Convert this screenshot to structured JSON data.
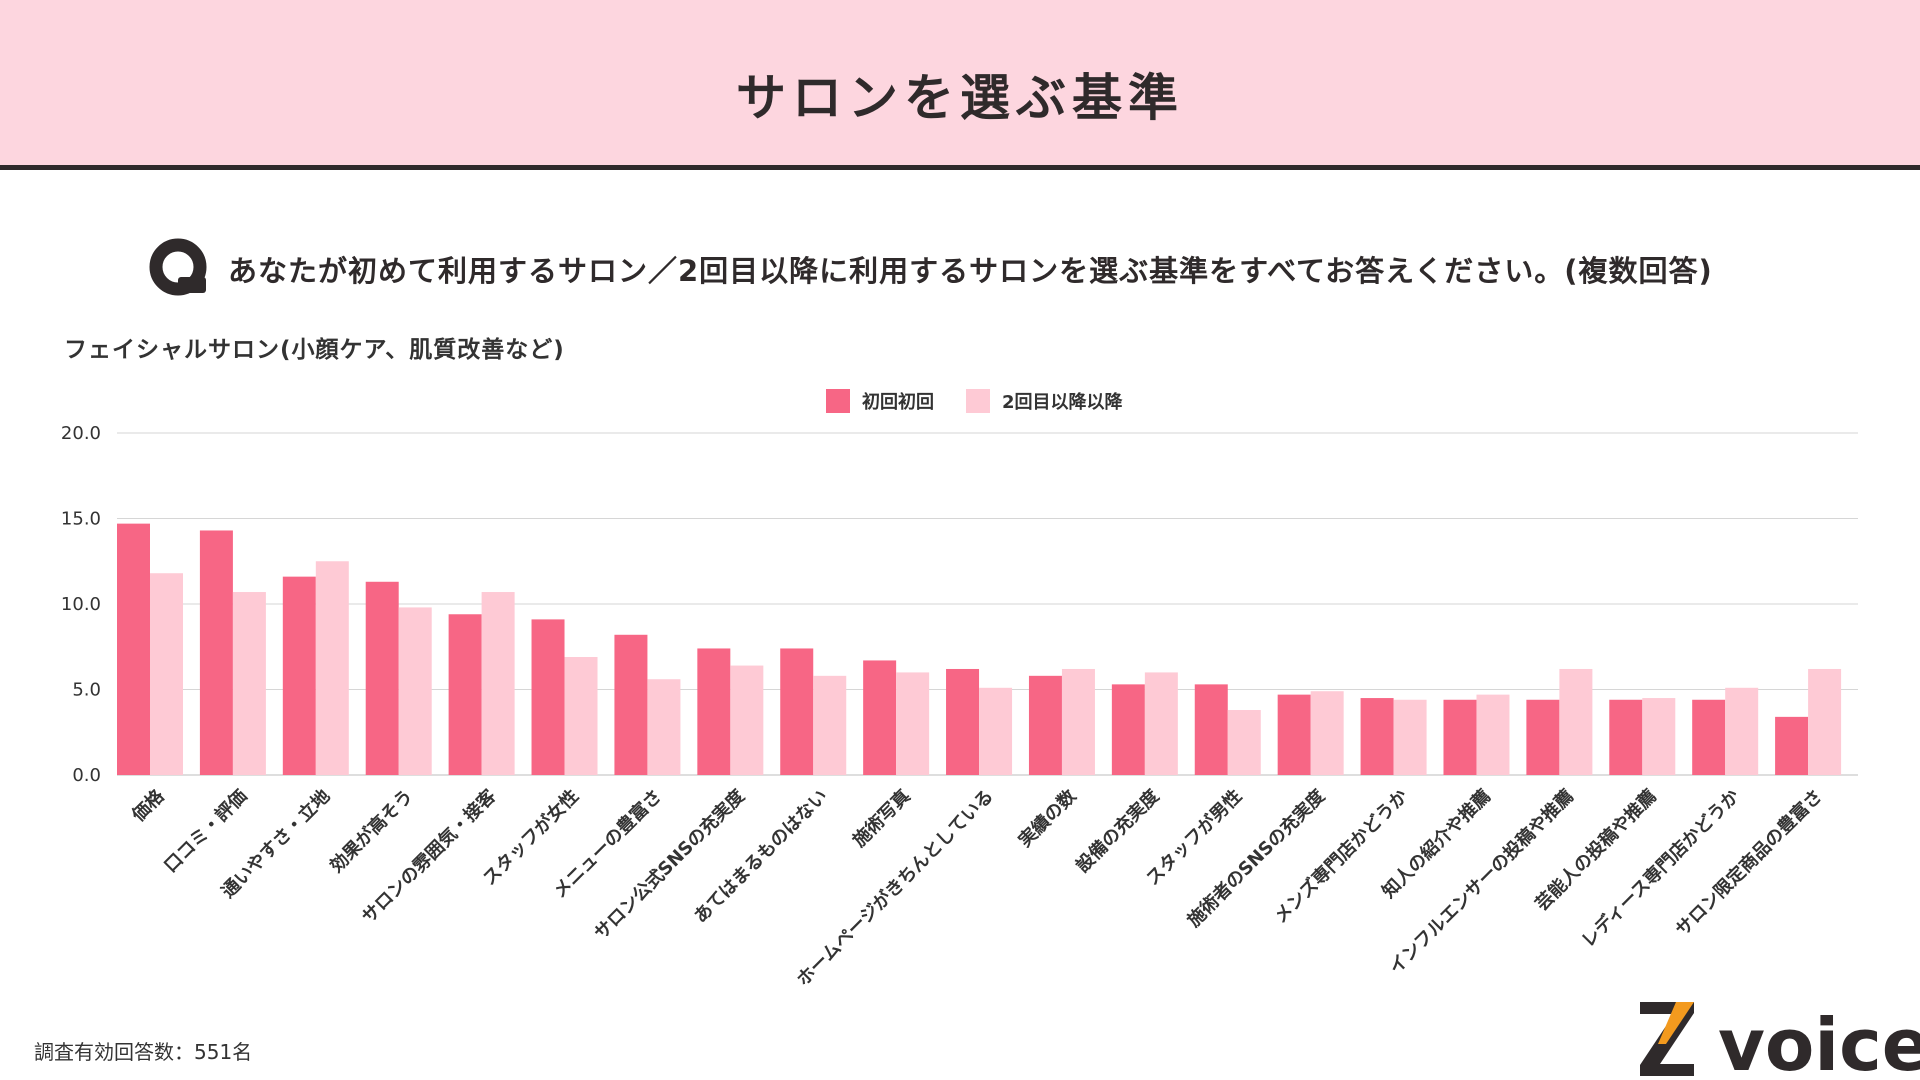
{
  "header": {
    "title": "サロンを選ぶ基準"
  },
  "question": {
    "text": "あなたが初めて利用するサロン／2回目以降に利用するサロンを選ぶ基準をすべてお答えください。(複数回答)"
  },
  "footnote": "調査有効回答数：551名",
  "logo": {
    "text": "voice",
    "icon": "zvoice-logo"
  },
  "colors": {
    "series1": "#f76685",
    "series2": "#fecad5",
    "header_bg": "#fdd6df"
  },
  "chart_data": {
    "type": "bar",
    "title": "",
    "subtitle": "フェイシャルサロン(小顔ケア、肌質改善など)",
    "xlabel": "",
    "ylabel": "",
    "ylim": [
      0,
      20
    ],
    "yticks": [
      "0.0",
      "5.0",
      "10.0",
      "15.0",
      "20.0"
    ],
    "grid": true,
    "legend_position": "top-center",
    "categories": [
      "価格",
      "口コミ・評価",
      "通いやすさ・立地",
      "効果が高そう",
      "サロンの雰囲気・接客",
      "スタッフが女性",
      "メニューの豊富さ",
      "サロン公式SNSの充実度",
      "あてはまるものはない",
      "施術写真",
      "ホームページがきちんとしている",
      "実績の数",
      "設備の充実度",
      "スタッフが男性",
      "施術者のSNSの充実度",
      "メンズ専門店かどうか",
      "知人の紹介や推薦",
      "インフルエンサーの投稿や推薦",
      "芸能人の投稿や推薦",
      "レディース専門店かどうか",
      "サロン限定商品の豊富さ"
    ],
    "series": [
      {
        "name": "初回初回",
        "values": [
          14.7,
          14.3,
          11.6,
          11.3,
          9.4,
          9.1,
          8.2,
          7.4,
          7.4,
          6.7,
          6.2,
          5.8,
          5.3,
          5.3,
          4.7,
          4.5,
          4.4,
          4.4,
          4.4,
          4.4,
          3.4
        ]
      },
      {
        "name": "2回目以降以降",
        "values": [
          11.8,
          10.7,
          12.5,
          9.8,
          10.7,
          6.9,
          5.6,
          6.4,
          5.8,
          6.0,
          5.1,
          6.2,
          6.0,
          3.8,
          4.9,
          4.4,
          4.7,
          6.2,
          4.5,
          5.1,
          6.2
        ]
      }
    ]
  }
}
